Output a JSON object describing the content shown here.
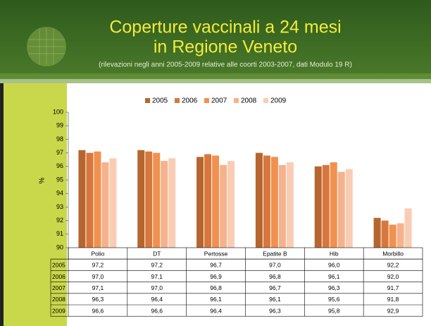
{
  "chart_data": {
    "type": "bar",
    "title": "Coperture vaccinali a 24 mesi",
    "title_line2": "in Regione Veneto",
    "subtitle": "(rilevazioni negli anni 2005-2009 relative alle coorti 2003-2007, dati Modulo 19 R)",
    "ylabel": "%",
    "categories": [
      "Polio",
      "DT",
      "Pertosse",
      "Epatite B",
      "Hib",
      "Morbillo"
    ],
    "series": [
      {
        "name": "2005",
        "color": "#b7652f",
        "values": [
          97.2,
          97.2,
          96.7,
          97.0,
          96.0,
          92.2
        ],
        "value_labels": [
          "97,2",
          "97,2",
          "96,7",
          "97,0",
          "96,0",
          "92,2"
        ]
      },
      {
        "name": "2006",
        "color": "#d8773c",
        "values": [
          97.0,
          97.1,
          96.9,
          96.8,
          96.1,
          92.0
        ],
        "value_labels": [
          "97,0",
          "97,1",
          "96,9",
          "96,8",
          "96,1",
          "92,0"
        ]
      },
      {
        "name": "2007",
        "color": "#f0914f",
        "values": [
          97.1,
          97.0,
          96.8,
          96.7,
          96.3,
          91.7
        ],
        "value_labels": [
          "97,1",
          "97,0",
          "96,8",
          "96,7",
          "96,3",
          "91,7"
        ]
      },
      {
        "name": "2008",
        "color": "#f6b28c",
        "values": [
          96.3,
          96.4,
          96.1,
          96.1,
          95.6,
          91.8
        ],
        "value_labels": [
          "96,3",
          "96,4",
          "96,1",
          "96,1",
          "95,6",
          "91,8"
        ]
      },
      {
        "name": "2009",
        "color": "#f9cdb3",
        "values": [
          96.6,
          96.6,
          96.4,
          96.3,
          95.8,
          92.9
        ],
        "value_labels": [
          "96,6",
          "96,6",
          "96,4",
          "96,3",
          "95,8",
          "92,9"
        ]
      }
    ],
    "ylim": [
      90,
      100
    ],
    "yticks": [
      90,
      91,
      92,
      93,
      94,
      95,
      96,
      97,
      98,
      99,
      100
    ],
    "legend": "top"
  }
}
